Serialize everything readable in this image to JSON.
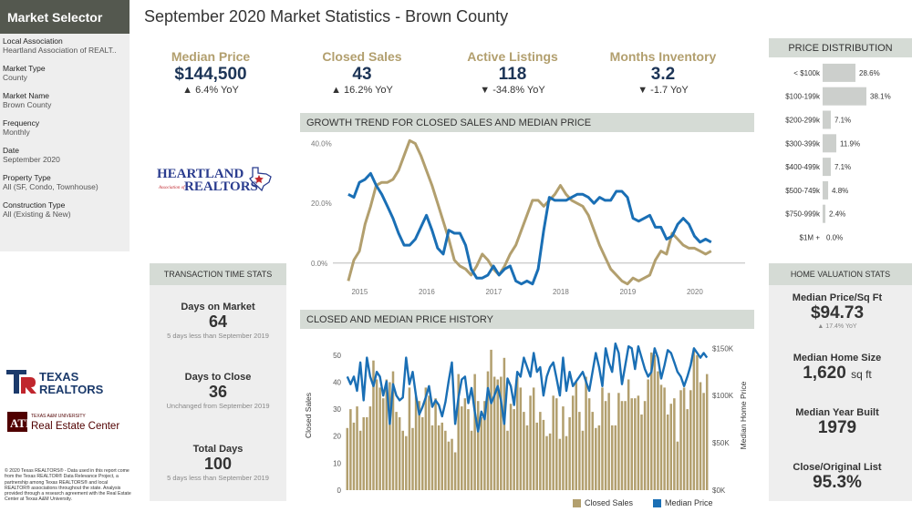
{
  "sidebar": {
    "title": "Market Selector",
    "fields": [
      {
        "label": "Local Association",
        "value": "Heartland Association of REALT.."
      },
      {
        "label": "Market Type",
        "value": "County"
      },
      {
        "label": "Market Name",
        "value": "Brown County"
      },
      {
        "label": "Frequency",
        "value": "Monthly"
      },
      {
        "label": "Date",
        "value": "September 2020"
      },
      {
        "label": "Property Type",
        "value": "All (SF, Condo, Townhouse)"
      },
      {
        "label": "Construction Type",
        "value": "All (Existing & New)"
      }
    ]
  },
  "logos": {
    "heartland": {
      "line1": "HEARTLAND",
      "small": "Association of",
      "line2": "REALTORS"
    },
    "texas_realtors": {
      "line1": "TEXAS",
      "line2": "REALTORS"
    },
    "real_estate_center": {
      "line1": "TEXAS A&M UNIVERSITY",
      "line2": "Real Estate Center"
    }
  },
  "copyright": "© 2020 Texas REALTORS® - Data used in this report come from the Texas REALTOR® Data Relevance Project, a partnership among Texas REALTORS® and local REALTOR® associations throughout the state. Analysis provided through a research agreement with the Real Estate Center at Texas A&M University.",
  "page_title": "September 2020 Market Statistics - Brown County",
  "kpis": [
    {
      "label": "Median Price",
      "value": "$144,500",
      "change": "▲ 6.4% YoY"
    },
    {
      "label": "Closed Sales",
      "value": "43",
      "change": "▲ 16.2% YoY"
    },
    {
      "label": "Active Listings",
      "value": "118",
      "change": "▼ -34.8% YoY"
    },
    {
      "label": "Months Inventory",
      "value": "3.2",
      "change": "▼ -1.7 YoY"
    }
  ],
  "panels": {
    "price_distribution": "PRICE DISTRIBUTION",
    "growth_trend": "GROWTH TREND FOR CLOSED SALES AND MEDIAN PRICE",
    "history": "CLOSED AND MEDIAN PRICE HISTORY",
    "transaction_time": "TRANSACTION TIME STATS",
    "home_valuation": "HOME VALUATION STATS"
  },
  "transaction_time": [
    {
      "label": "Days on Market",
      "value": "64",
      "note": "5 days less than September 2019"
    },
    {
      "label": "Days to Close",
      "value": "36",
      "note": "Unchanged from September 2019"
    },
    {
      "label": "Total Days",
      "value": "100",
      "note": "5 days less than September 2019"
    }
  ],
  "home_valuation": {
    "price_sqft": {
      "label": "Median Price/Sq Ft",
      "value": "$94.73",
      "sub": "▲ 17.4% YoY"
    },
    "home_size": {
      "label": "Median Home Size",
      "value": "1,620",
      "unit": "sq ft"
    },
    "year_built": {
      "label": "Median Year Built",
      "value": "1979"
    },
    "close_list": {
      "label": "Close/Original List",
      "value": "95.3%"
    }
  },
  "legend": {
    "closed_sales": "Closed Sales",
    "median_price": "Median Price"
  },
  "colors": {
    "gold": "#b29f6e",
    "blue": "#1a6fb5",
    "bar_gray": "#cccfcc"
  },
  "chart_data": [
    {
      "type": "bar",
      "title": "PRICE DISTRIBUTION",
      "categories": [
        "< $100k",
        "$100-199k",
        "$200-299k",
        "$300-399k",
        "$400-499k",
        "$500-749k",
        "$750-999k",
        "$1M +"
      ],
      "values": [
        28.6,
        38.1,
        7.1,
        11.9,
        7.1,
        4.8,
        2.4,
        0.0
      ],
      "labels": [
        "28.6%",
        "38.1%",
        "7.1%",
        "11.9%",
        "7.1%",
        "4.8%",
        "2.4%",
        "0.0%"
      ],
      "orientation": "horizontal"
    },
    {
      "type": "line",
      "title": "GROWTH TREND FOR CLOSED SALES AND MEDIAN PRICE",
      "x_ticks": [
        "2015",
        "2016",
        "2017",
        "2018",
        "2019",
        "2020"
      ],
      "y_ticks": [
        "0.0%",
        "20.0%",
        "40.0%"
      ],
      "ylim": [
        -8,
        42
      ],
      "x_start": 2014.83,
      "x_step": 0.0833,
      "series": [
        {
          "name": "Closed Sales",
          "values": [
            -6,
            1,
            4,
            13,
            19,
            26,
            27,
            27,
            28,
            31,
            36,
            41,
            40,
            36,
            31,
            26,
            20,
            14,
            8,
            1,
            -1,
            -2,
            -4,
            -1,
            3,
            1,
            -2,
            -4,
            -1,
            3,
            6,
            11,
            16,
            21,
            21,
            19,
            21,
            23,
            26,
            23,
            21,
            20,
            19,
            16,
            11,
            6,
            2,
            -2,
            -4,
            -6,
            -7,
            -5,
            -6,
            -5,
            -4,
            1,
            4,
            3,
            10,
            8,
            6,
            5,
            5,
            4,
            3,
            4
          ]
        },
        {
          "name": "Median Price",
          "values": [
            23,
            22,
            27,
            28,
            30,
            26,
            23,
            19,
            15,
            10,
            6,
            6,
            8,
            12,
            16,
            11,
            5,
            3,
            11,
            10,
            10,
            6,
            -2,
            -5,
            -5,
            -4,
            -1,
            -4,
            -2,
            -1,
            -6,
            -7,
            -6,
            -7,
            -2,
            11,
            22,
            21,
            21,
            21,
            22,
            23,
            23,
            22,
            20,
            22,
            21,
            21,
            24,
            24,
            22,
            15,
            14,
            15,
            16,
            12,
            12,
            8,
            9,
            13,
            15,
            13,
            9,
            7,
            8,
            7
          ]
        }
      ]
    },
    {
      "type": "bar",
      "title": "CLOSED AND MEDIAN PRICE HISTORY",
      "ylabel": "Closed Sales",
      "y2label": "Median Home Price",
      "ylim": [
        0,
        55
      ],
      "y_ticks": [
        0,
        10,
        20,
        30,
        40,
        50
      ],
      "y2lim": [
        0,
        157000
      ],
      "y2_ticks": [
        "$0K",
        "$50K",
        "$100K",
        "$150K"
      ],
      "series": [
        {
          "name": "Closed Sales",
          "type": "bar",
          "values": [
            23,
            30,
            25,
            31,
            22,
            27,
            27,
            31,
            48,
            41,
            38,
            34,
            41,
            40,
            44,
            29,
            27,
            22,
            20,
            38,
            23,
            35,
            33,
            27,
            38,
            35,
            24,
            34,
            24,
            25,
            22,
            18,
            19,
            14,
            43,
            31,
            34,
            30,
            22,
            43,
            33,
            27,
            33,
            44,
            52,
            42,
            41,
            42,
            49,
            22,
            32,
            30,
            42,
            38,
            29,
            24,
            35,
            38,
            25,
            29,
            26,
            20,
            21,
            35,
            34,
            19,
            31,
            20,
            27,
            35,
            40,
            29,
            22,
            42,
            34,
            29,
            23,
            24,
            38,
            33,
            36,
            24,
            24,
            36,
            33,
            33,
            41,
            34,
            34,
            35,
            28,
            33,
            41,
            51,
            50,
            44,
            39,
            38,
            28,
            32,
            34,
            18,
            37,
            38,
            30,
            37,
            52,
            50,
            40,
            36,
            43
          ]
        },
        {
          "name": "Median Price",
          "type": "line",
          "values": [
            120000,
            112000,
            120000,
            105000,
            135000,
            95000,
            140000,
            120000,
            110000,
            125000,
            120000,
            100000,
            115000,
            70000,
            112000,
            100000,
            95000,
            98000,
            140000,
            112000,
            125000,
            100000,
            80000,
            88000,
            98000,
            110000,
            88000,
            95000,
            90000,
            78000,
            93000,
            115000,
            135000,
            70000,
            98000,
            117000,
            120000,
            92000,
            108000,
            83000,
            62000,
            83000,
            75000,
            108000,
            92000,
            100000,
            110000,
            95000,
            70000,
            118000,
            110000,
            90000,
            125000,
            120000,
            140000,
            130000,
            120000,
            145000,
            125000,
            130000,
            100000,
            120000,
            130000,
            135000,
            118000,
            100000,
            140000,
            105000,
            125000,
            110000,
            115000,
            120000,
            125000,
            115000,
            105000,
            125000,
            145000,
            130000,
            110000,
            150000,
            135000,
            125000,
            155000,
            145000,
            112000,
            132000,
            152000,
            150000,
            128000,
            152000,
            140000,
            128000,
            120000,
            125000,
            150000,
            140000,
            118000,
            132000,
            148000,
            145000,
            135000,
            125000,
            120000,
            110000,
            120000,
            132000,
            150000,
            145000,
            140000,
            145000,
            140000
          ]
        }
      ]
    }
  ]
}
